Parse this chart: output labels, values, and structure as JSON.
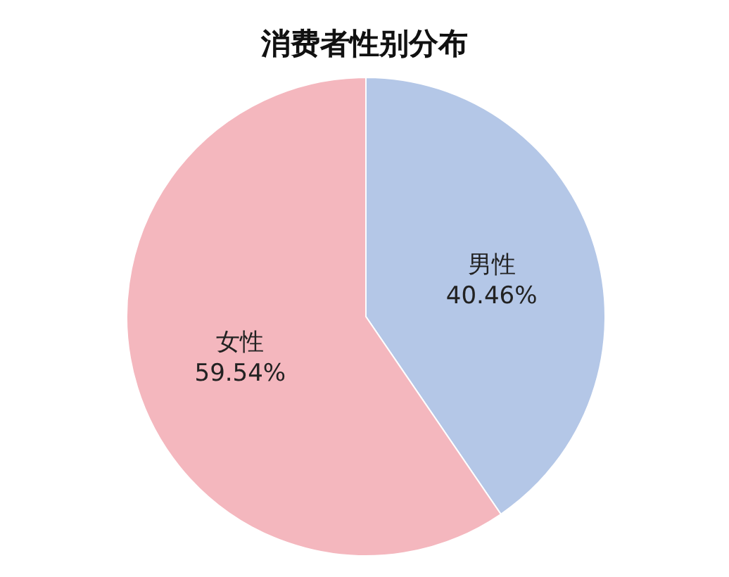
{
  "chart_data": {
    "type": "pie",
    "title": "消费者性别分布",
    "categories": [
      "男性",
      "女性"
    ],
    "values": [
      40.46,
      59.54
    ],
    "colors": [
      "#b4c7e7",
      "#f4b7be"
    ],
    "value_labels": [
      "40.46%",
      "59.54%"
    ]
  }
}
